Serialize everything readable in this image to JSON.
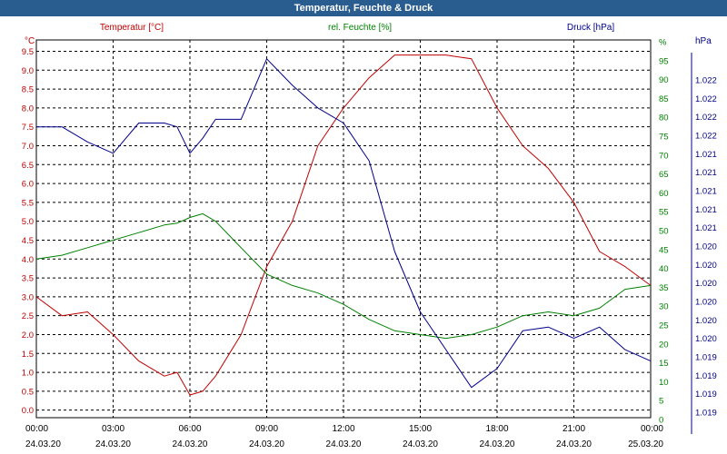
{
  "window": {
    "title": "Temperatur, Feuchte & Druck"
  },
  "colors": {
    "temperature": "#c00000",
    "humidity": "#008000",
    "pressure": "#00008b",
    "grid": "#000000",
    "titlebar": "#2a5d8f"
  },
  "chart_data": {
    "type": "line",
    "title": "Temperatur, Feuchte & Druck",
    "grid": true,
    "x_ticks": [
      {
        "time": "00:00",
        "date": "24.03.20"
      },
      {
        "time": "03:00",
        "date": "24.03.20"
      },
      {
        "time": "06:00",
        "date": "24.03.20"
      },
      {
        "time": "09:00",
        "date": "24.03.20"
      },
      {
        "time": "12:00",
        "date": "24.03.20"
      },
      {
        "time": "15:00",
        "date": "24.03.20"
      },
      {
        "time": "18:00",
        "date": "24.03.20"
      },
      {
        "time": "21:00",
        "date": "24.03.20"
      },
      {
        "time": "00:00",
        "date": "25.03.20"
      }
    ],
    "x_range": [
      "24.03.20 00:00",
      "25.03.20 00:00"
    ],
    "x_hours": [
      0,
      1,
      2,
      3,
      4,
      5,
      5.5,
      6,
      6.5,
      7,
      8,
      9,
      10,
      11,
      12,
      13,
      14,
      15,
      16,
      17,
      18,
      19,
      20,
      21,
      22,
      23,
      24
    ],
    "axes": {
      "left": {
        "label": "°C",
        "series_label": "Temperatur [°C]",
        "ylim": [
          -0.2,
          9.8
        ],
        "ticks": [
          "0.0",
          "0.5",
          "1.0",
          "1.5",
          "2.0",
          "2.5",
          "3.0",
          "3.5",
          "4.0",
          "4.5",
          "5.0",
          "5.5",
          "6.0",
          "6.5",
          "7.0",
          "7.5",
          "8.0",
          "8.5",
          "9.0",
          "9.5"
        ]
      },
      "middle": {
        "label": "%",
        "series_label": "rel. Feuchte [%]",
        "ylim": [
          0,
          100
        ],
        "ticks": [
          "0",
          "5",
          "10",
          "15",
          "20",
          "25",
          "30",
          "35",
          "40",
          "45",
          "50",
          "55",
          "60",
          "65",
          "70",
          "75",
          "80",
          "85",
          "90",
          "95",
          "%"
        ]
      },
      "right": {
        "label": "hPa",
        "series_label": "Druck [hPa]",
        "ticks": [
          "1.019",
          "1.019",
          "1.019",
          "1.019",
          "1.020",
          "1.020",
          "1.020",
          "1.020",
          "1.020",
          "1.020",
          "1.021",
          "1.021",
          "1.021",
          "1.021",
          "1.021",
          "1.022",
          "1.022",
          "1.022",
          "1.022"
        ]
      }
    },
    "series": [
      {
        "name": "Temperatur [°C]",
        "axis": "left",
        "values": [
          3.0,
          2.5,
          2.6,
          2.0,
          1.3,
          0.9,
          1.0,
          0.4,
          0.5,
          0.9,
          2.0,
          3.8,
          5.0,
          7.0,
          8.0,
          8.8,
          9.4,
          9.4,
          9.4,
          9.3,
          8.0,
          7.0,
          6.4,
          5.5,
          4.2,
          3.8,
          3.3
        ]
      },
      {
        "name": "rel. Feuchte [%]",
        "axis": "middle",
        "values": [
          42,
          43,
          45,
          47,
          49,
          51,
          51.5,
          53,
          54,
          52,
          45,
          38,
          35,
          33,
          30,
          26,
          23,
          22,
          21,
          22,
          24,
          27,
          28,
          27,
          29,
          34,
          35
        ]
      },
      {
        "name": "Druck [hPa]",
        "axis": "right",
        "values": [
          77,
          77,
          73,
          70,
          78,
          78,
          77,
          70,
          74,
          79,
          79,
          95,
          88,
          82,
          78,
          68,
          44,
          28,
          18,
          8,
          13,
          23,
          24,
          21,
          24,
          18,
          15
        ]
      }
    ]
  }
}
